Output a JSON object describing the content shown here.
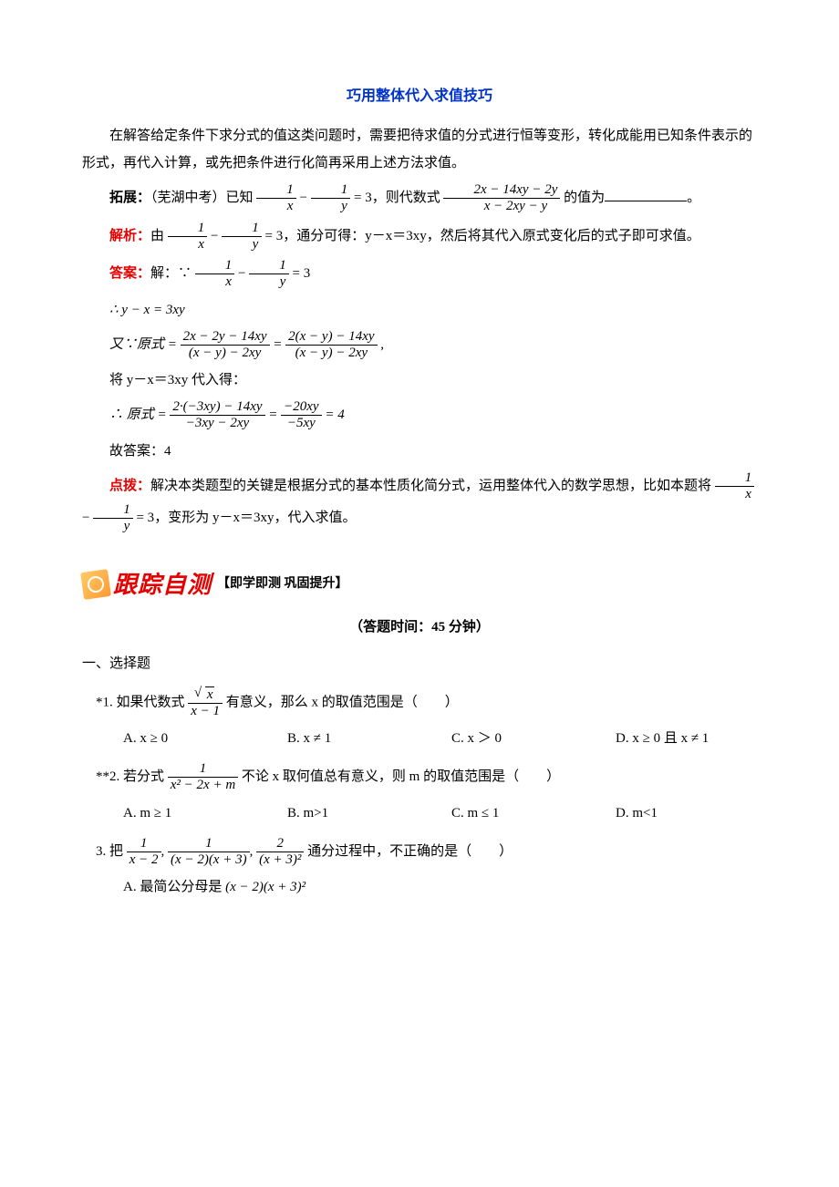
{
  "title": "巧用整体代入求值技巧",
  "intro": "在解答给定条件下求分式的值这类问题时，需要把待求值的分式进行恒等变形，转化成能用已知条件表示的形式，再代入计算，或先把条件进行化简再采用上述方法求值。",
  "ext_label": "拓展：",
  "ext_src": "（芜湖中考）已知",
  "ext_mid": "，则代数式",
  "ext_tail": "的值为",
  "analyze_label": "解析：",
  "analyze_pre": "由",
  "analyze_post": "，通分可得：y－x＝3xy，然后将其代入原式变化后的式子即可求值。",
  "answer_label": "答案：",
  "answer_pre": "解：∵",
  "line_deriv1": "∴ y − x = 3xy",
  "line_orig_pre": "又∵原式",
  "line_sub": "将 y－x＝3xy 代入得：",
  "line_final_pre": "∴ 原式",
  "answer_final": "故答案：4",
  "hint_label": "点拨：",
  "hint_pre": "解决本类题型的关键是根据分式的基本性质化简分式，运用整体代入的数学思想，比如本题将",
  "hint_post": "，变形为 y－x＝3xy，代入求值。",
  "banner_main": "跟踪自测",
  "banner_sub": "【即学即测 巩固提升】",
  "time_note": "（答题时间：45 分钟）",
  "sec1": "一、选择题",
  "q1_pre": "*1. 如果代数式",
  "q1_post": "有意义，那么 x 的取值范围是（　　）",
  "q1A": "A.  x ≥ 0",
  "q1B": "B.  x ≠ 1",
  "q1C": "C.  x ＞ 0",
  "q1D": "D.  x ≥ 0 且 x ≠ 1",
  "q2_pre": "**2. 若分式",
  "q2_post": "不论 x 取何值总有意义，则 m 的取值范围是（　　）",
  "q2A": "A.  m ≥ 1",
  "q2B": "B.  m>1",
  "q2C": "C.  m ≤ 1",
  "q2D": "D.  m<1",
  "q3_pre": "3. 把",
  "q3_post": " 通分过程中，不正确的是（　　）",
  "q3A_pre": "A. 最简公分母是",
  "frac_1x": {
    "num": "1",
    "den": "x"
  },
  "frac_1y": {
    "num": "1",
    "den": "y"
  },
  "eq3": "= 3",
  "bigfrac1": {
    "num": "2x − 14xy − 2y",
    "den": "x − 2xy − y"
  },
  "origL": {
    "num": "2x − 2y − 14xy",
    "den": "(x − y) − 2xy"
  },
  "origR": {
    "num": "2(x − y) − 14xy",
    "den": "(x − y) − 2xy"
  },
  "finL": {
    "num": "2·(−3xy) − 14xy",
    "den": "−3xy − 2xy"
  },
  "finM": {
    "num": "−20xy",
    "den": "−5xy"
  },
  "finEq": "= 4",
  "q1frac": {
    "num_sqrt": "x",
    "den": "x − 1"
  },
  "q2frac": {
    "num": "1",
    "den": "x² − 2x + m"
  },
  "q3f1": {
    "num": "1",
    "den": "x − 2"
  },
  "q3f2": {
    "num": "1",
    "den": "(x − 2)(x + 3)"
  },
  "q3f3": {
    "num": "2",
    "den": "(x + 3)²"
  },
  "q3A_expr": "(x − 2)(x + 3)²",
  "colors": {
    "title": "#0033cc",
    "accent": "#e60000"
  }
}
